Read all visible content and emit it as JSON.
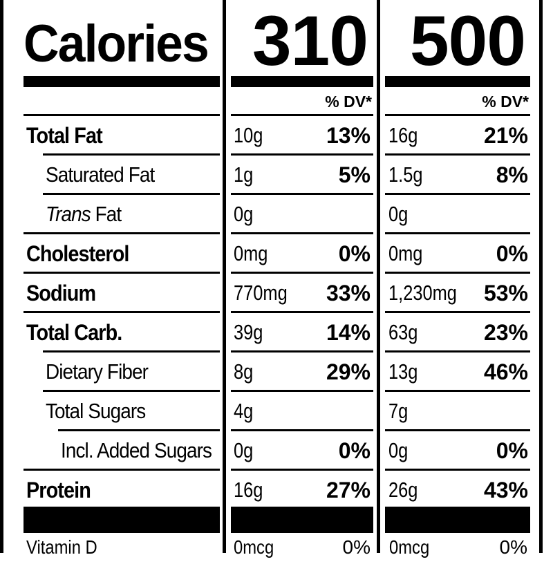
{
  "calories": {
    "label": "Calories",
    "values": [
      "310",
      "500"
    ]
  },
  "dv_header": "% DV*",
  "rows": [
    {
      "label": "Total Fat",
      "style": "bold",
      "a1": "10g",
      "p1": "13%",
      "a2": "16g",
      "p2": "21%"
    },
    {
      "label": "Saturated Fat",
      "style": "sub",
      "a1": "1g",
      "p1": "5%",
      "a2": "1.5g",
      "p2": "8%"
    },
    {
      "label_italic": "Trans",
      "label_rest": " Fat",
      "style": "trans",
      "a1": "0g",
      "p1": "",
      "a2": "0g",
      "p2": ""
    },
    {
      "label": "Cholesterol",
      "style": "bold",
      "a1": "0mg",
      "p1": "0%",
      "a2": "0mg",
      "p2": "0%"
    },
    {
      "label": "Sodium",
      "style": "bold",
      "a1": "770mg",
      "p1": "33%",
      "a2": "1,230mg",
      "p2": "53%"
    },
    {
      "label": "Total Carb.",
      "style": "bold",
      "a1": "39g",
      "p1": "14%",
      "a2": "63g",
      "p2": "23%"
    },
    {
      "label": "Dietary Fiber",
      "style": "sub",
      "a1": "8g",
      "p1": "29%",
      "a2": "13g",
      "p2": "46%"
    },
    {
      "label": "Total Sugars",
      "style": "sub",
      "a1": "4g",
      "p1": "",
      "a2": "7g",
      "p2": ""
    },
    {
      "label": "Incl. Added Sugars",
      "style": "sub2",
      "a1": "0g",
      "p1": "0%",
      "a2": "0g",
      "p2": "0%"
    },
    {
      "label": "Protein",
      "style": "bold",
      "a1": "16g",
      "p1": "27%",
      "a2": "26g",
      "p2": "43%"
    }
  ],
  "vitamin_d": {
    "label": "Vitamin D",
    "a1": "0mcg",
    "p1": "0%",
    "a2": "0mcg",
    "p2": "0%"
  }
}
